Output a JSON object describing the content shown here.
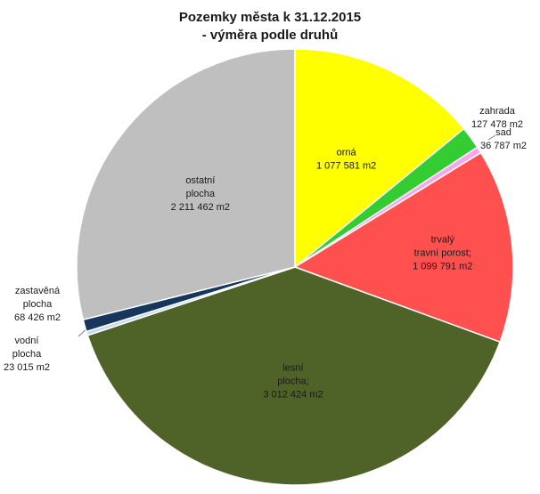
{
  "chart_data": {
    "type": "pie",
    "title": "Pozemky města k 31.12.2015",
    "subtitle": "- výměra podle druhů",
    "unit": "m2",
    "slices": [
      {
        "label": [
          "orná"
        ],
        "value": 1077581,
        "value_text": "1 077 581 m2",
        "color": "#ffff00"
      },
      {
        "label": [
          "zahrada"
        ],
        "value": 127478,
        "value_text": "127 478 m2",
        "color": "#33cc33"
      },
      {
        "label": [
          "sad"
        ],
        "value": 36787,
        "value_text": "36 787 m2",
        "color": "#f5a6f0"
      },
      {
        "label": [
          "trvalý",
          "travní porost;"
        ],
        "value": 1099791,
        "value_text": "1 099 791 m2",
        "color": "#ff5050"
      },
      {
        "label": [
          "lesní",
          "plocha;"
        ],
        "value": 3012424,
        "value_text": "3 012 424 m2",
        "color": "#4f6228"
      },
      {
        "label": [
          "vodní",
          "plocha"
        ],
        "value": 23015,
        "value_text": "23 015 m2",
        "color": "#c5d9f1"
      },
      {
        "label": [
          "zastavěná",
          "plocha"
        ],
        "value": 68426,
        "value_text": "68 426 m2",
        "color": "#17365d"
      },
      {
        "label": [
          "ostatní",
          "plocha"
        ],
        "value": 2211462,
        "value_text": "2 211 462 m2",
        "color": "#bfbfbf"
      }
    ]
  }
}
